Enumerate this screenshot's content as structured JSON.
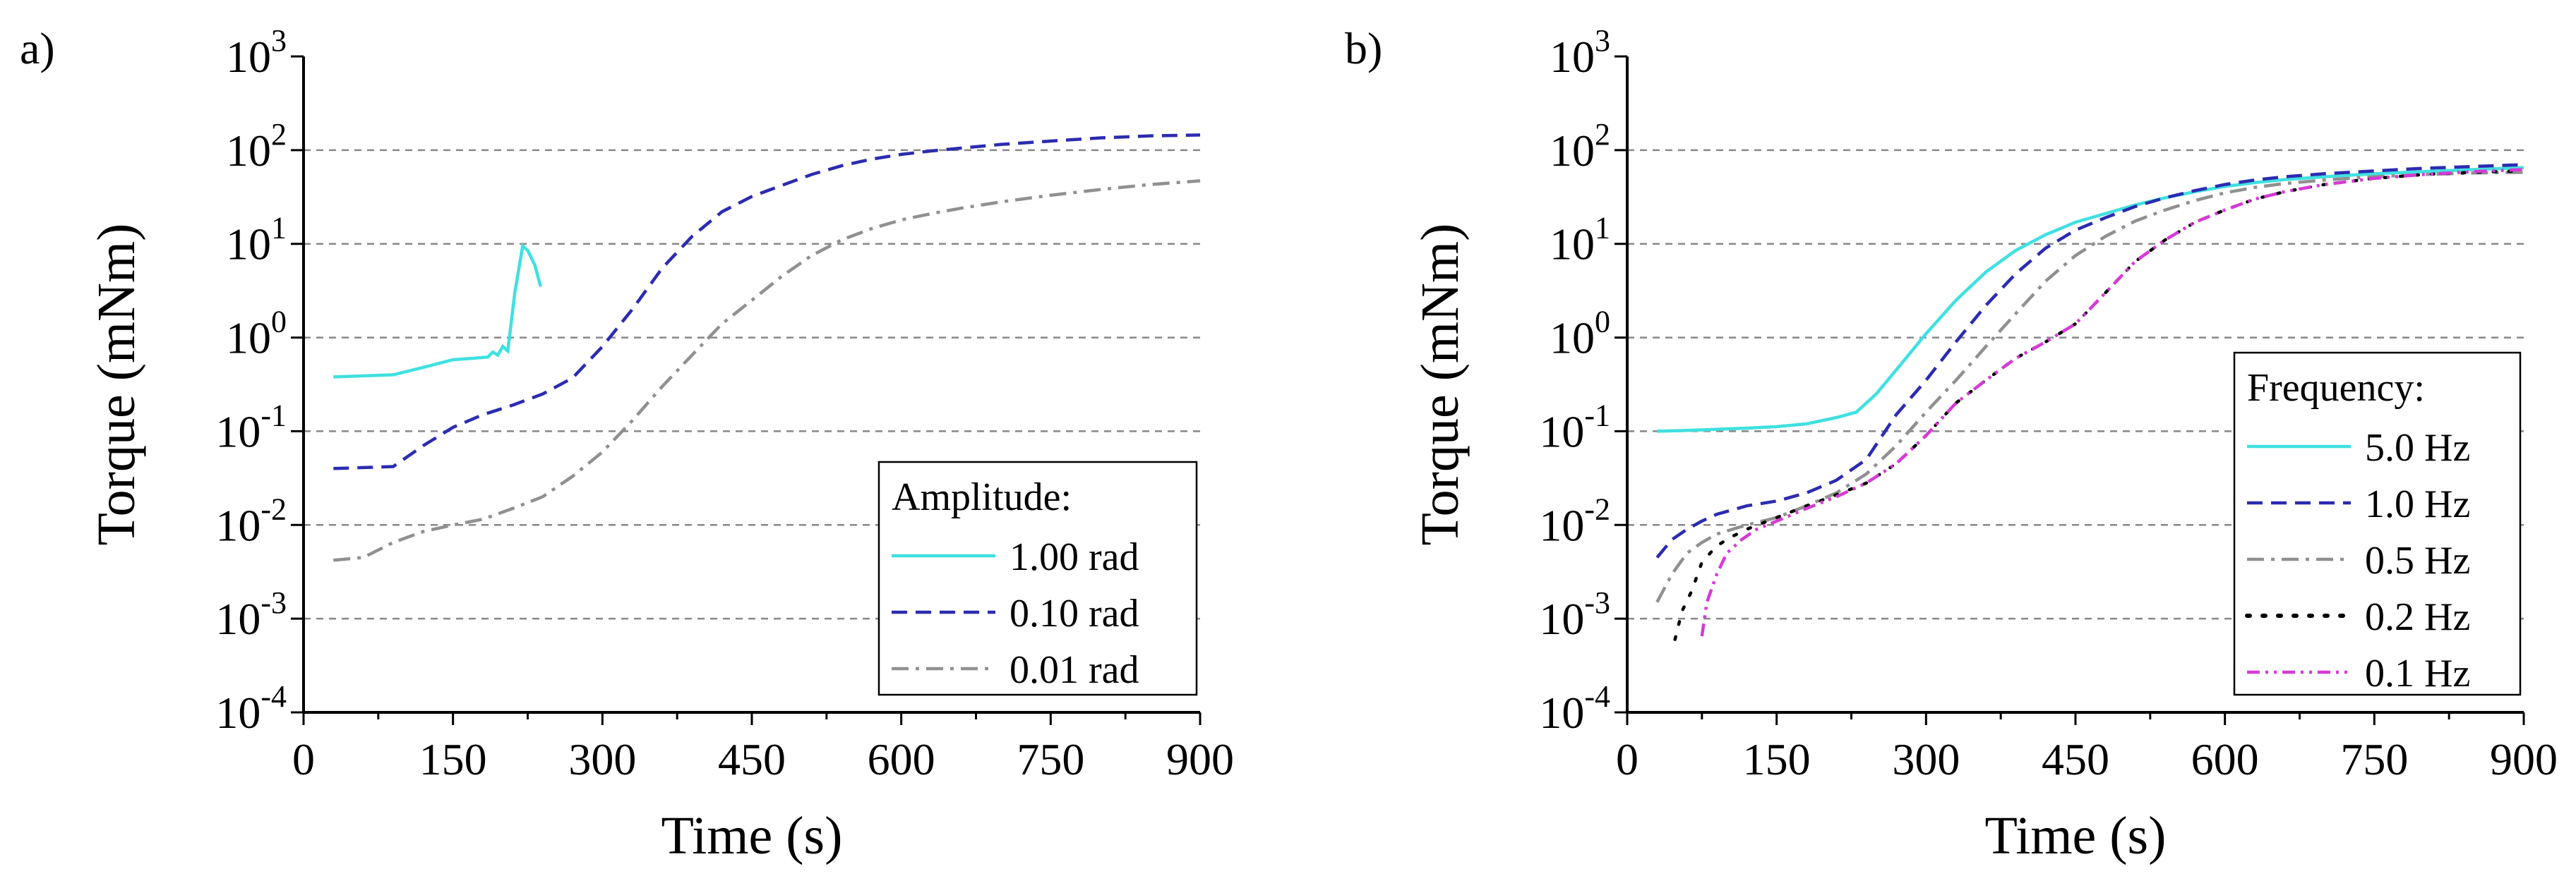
{
  "chart_data": [
    {
      "type": "line",
      "panel_label": "a)",
      "xlabel": "Time (s)",
      "ylabel": "Torque (mNm)",
      "xlim": [
        0,
        900
      ],
      "ylim": [
        0.0001,
        1000
      ],
      "yscale": "log",
      "xticks": [
        "0",
        "150",
        "300",
        "450",
        "600",
        "750",
        "900"
      ],
      "yticks": [
        {
          "base": "10",
          "exp": "-4"
        },
        {
          "base": "10",
          "exp": "-3"
        },
        {
          "base": "10",
          "exp": "-2"
        },
        {
          "base": "10",
          "exp": "-1"
        },
        {
          "base": "10",
          "exp": "0"
        },
        {
          "base": "10",
          "exp": "1"
        },
        {
          "base": "10",
          "exp": "2"
        },
        {
          "base": "10",
          "exp": "3"
        }
      ],
      "grid": "horizontal dashed at decades 10^-3 to 10^2",
      "legend_title": "Amplitude:",
      "legend_position": "lower-right",
      "series": [
        {
          "name": "1.00 rad",
          "color": "#40e0e0",
          "dash": "solid",
          "points": [
            [
              30,
              0.38
            ],
            [
              60,
              0.39
            ],
            [
              90,
              0.4
            ],
            [
              120,
              0.48
            ],
            [
              150,
              0.58
            ],
            [
              170,
              0.6
            ],
            [
              185,
              0.62
            ],
            [
              190,
              0.7
            ],
            [
              195,
              0.65
            ],
            [
              200,
              0.8
            ],
            [
              205,
              0.72
            ],
            [
              212,
              3.0
            ],
            [
              220,
              9.5
            ],
            [
              225,
              8.5
            ],
            [
              232,
              6.0
            ],
            [
              238,
              3.5
            ]
          ]
        },
        {
          "name": "0.10 rad",
          "color": "#2b2bb0",
          "dash": "dash",
          "points": [
            [
              30,
              0.04
            ],
            [
              60,
              0.041
            ],
            [
              90,
              0.042
            ],
            [
              120,
              0.07
            ],
            [
              150,
              0.11
            ],
            [
              180,
              0.15
            ],
            [
              210,
              0.19
            ],
            [
              240,
              0.25
            ],
            [
              270,
              0.37
            ],
            [
              300,
              0.8
            ],
            [
              330,
              2.0
            ],
            [
              360,
              5.5
            ],
            [
              390,
              12
            ],
            [
              420,
              22
            ],
            [
              450,
              32
            ],
            [
              480,
              42
            ],
            [
              510,
              55
            ],
            [
              540,
              68
            ],
            [
              570,
              80
            ],
            [
              600,
              90
            ],
            [
              630,
              98
            ],
            [
              660,
              105
            ],
            [
              700,
              115
            ],
            [
              750,
              125
            ],
            [
              800,
              135
            ],
            [
              850,
              142
            ],
            [
              900,
              145
            ]
          ]
        },
        {
          "name": "0.01 rad",
          "color": "#909090",
          "dash": "dashdot",
          "points": [
            [
              30,
              0.0042
            ],
            [
              60,
              0.0045
            ],
            [
              90,
              0.0065
            ],
            [
              120,
              0.0085
            ],
            [
              150,
              0.01
            ],
            [
              180,
              0.0115
            ],
            [
              210,
              0.015
            ],
            [
              240,
              0.02
            ],
            [
              270,
              0.033
            ],
            [
              300,
              0.06
            ],
            [
              330,
              0.13
            ],
            [
              360,
              0.3
            ],
            [
              390,
              0.65
            ],
            [
              420,
              1.4
            ],
            [
              450,
              2.5
            ],
            [
              480,
              4.5
            ],
            [
              510,
              7.5
            ],
            [
              540,
              11
            ],
            [
              570,
              14.5
            ],
            [
              600,
              18
            ],
            [
              630,
              21
            ],
            [
              660,
              24
            ],
            [
              700,
              28
            ],
            [
              750,
              33
            ],
            [
              800,
              38
            ],
            [
              850,
              43
            ],
            [
              900,
              47
            ]
          ]
        }
      ]
    },
    {
      "type": "line",
      "panel_label": "b)",
      "xlabel": "Time (s)",
      "ylabel": "Torque (mNm)",
      "xlim": [
        0,
        900
      ],
      "ylim": [
        0.0001,
        1000
      ],
      "yscale": "log",
      "xticks": [
        "0",
        "150",
        "300",
        "450",
        "600",
        "750",
        "900"
      ],
      "yticks": [
        {
          "base": "10",
          "exp": "-4"
        },
        {
          "base": "10",
          "exp": "-3"
        },
        {
          "base": "10",
          "exp": "-2"
        },
        {
          "base": "10",
          "exp": "-1"
        },
        {
          "base": "10",
          "exp": "0"
        },
        {
          "base": "10",
          "exp": "1"
        },
        {
          "base": "10",
          "exp": "2"
        },
        {
          "base": "10",
          "exp": "3"
        }
      ],
      "grid": "horizontal dashed at decades 10^-3 to 10^2",
      "legend_title": "Frequency:",
      "legend_position": "lower-right",
      "series": [
        {
          "name": "5.0 Hz",
          "color": "#40e0e0",
          "dash": "solid",
          "points": [
            [
              30,
              0.1
            ],
            [
              60,
              0.102
            ],
            [
              90,
              0.105
            ],
            [
              120,
              0.108
            ],
            [
              150,
              0.112
            ],
            [
              180,
              0.12
            ],
            [
              210,
              0.14
            ],
            [
              230,
              0.16
            ],
            [
              250,
              0.25
            ],
            [
              270,
              0.45
            ],
            [
              300,
              1.1
            ],
            [
              330,
              2.5
            ],
            [
              360,
              5.0
            ],
            [
              390,
              8.5
            ],
            [
              420,
              12.5
            ],
            [
              450,
              17
            ],
            [
              480,
              21
            ],
            [
              510,
              26
            ],
            [
              540,
              31
            ],
            [
              570,
              36
            ],
            [
              600,
              41
            ],
            [
              630,
              45
            ],
            [
              660,
              48.5
            ],
            [
              700,
              52
            ],
            [
              750,
              56
            ],
            [
              800,
              59
            ],
            [
              850,
              62
            ],
            [
              900,
              65
            ]
          ]
        },
        {
          "name": "1.0 Hz",
          "color": "#2b2bb0",
          "dash": "dash",
          "points": [
            [
              30,
              0.0045
            ],
            [
              45,
              0.007
            ],
            [
              60,
              0.009
            ],
            [
              75,
              0.011
            ],
            [
              90,
              0.013
            ],
            [
              120,
              0.016
            ],
            [
              150,
              0.018
            ],
            [
              180,
              0.022
            ],
            [
              210,
              0.03
            ],
            [
              240,
              0.05
            ],
            [
              270,
              0.15
            ],
            [
              300,
              0.35
            ],
            [
              330,
              0.9
            ],
            [
              360,
              2.2
            ],
            [
              390,
              4.8
            ],
            [
              420,
              9.0
            ],
            [
              450,
              14
            ],
            [
              480,
              19
            ],
            [
              510,
              25
            ],
            [
              540,
              31
            ],
            [
              570,
              37
            ],
            [
              600,
              43
            ],
            [
              630,
              48
            ],
            [
              660,
              52
            ],
            [
              700,
              56
            ],
            [
              750,
              60
            ],
            [
              800,
              64
            ],
            [
              850,
              67
            ],
            [
              900,
              70
            ]
          ]
        },
        {
          "name": "0.5 Hz",
          "color": "#909090",
          "dash": "dashdot",
          "points": [
            [
              30,
              0.0015
            ],
            [
              45,
              0.003
            ],
            [
              60,
              0.005
            ],
            [
              75,
              0.0065
            ],
            [
              90,
              0.008
            ],
            [
              120,
              0.01
            ],
            [
              150,
              0.012
            ],
            [
              180,
              0.016
            ],
            [
              210,
              0.022
            ],
            [
              240,
              0.035
            ],
            [
              270,
              0.07
            ],
            [
              300,
              0.16
            ],
            [
              330,
              0.35
            ],
            [
              360,
              0.8
            ],
            [
              390,
              1.8
            ],
            [
              420,
              4.0
            ],
            [
              450,
              7.5
            ],
            [
              480,
              12
            ],
            [
              510,
              17.5
            ],
            [
              540,
              23
            ],
            [
              570,
              29
            ],
            [
              600,
              35
            ],
            [
              630,
              40
            ],
            [
              660,
              44
            ],
            [
              700,
              48
            ],
            [
              750,
              52
            ],
            [
              800,
              55
            ],
            [
              850,
              57
            ],
            [
              900,
              58
            ]
          ]
        },
        {
          "name": "0.2 Hz",
          "color": "#000000",
          "dash": "dot",
          "points": [
            [
              48,
              0.0006
            ],
            [
              55,
              0.0012
            ],
            [
              65,
              0.002
            ],
            [
              75,
              0.004
            ],
            [
              90,
              0.006
            ],
            [
              105,
              0.0075
            ],
            [
              120,
              0.009
            ],
            [
              150,
              0.012
            ],
            [
              180,
              0.016
            ],
            [
              210,
              0.021
            ],
            [
              240,
              0.028
            ],
            [
              270,
              0.045
            ],
            [
              300,
              0.09
            ],
            [
              330,
              0.2
            ],
            [
              360,
              0.35
            ],
            [
              390,
              0.6
            ],
            [
              420,
              0.9
            ],
            [
              450,
              1.4
            ],
            [
              480,
              3.0
            ],
            [
              510,
              6.5
            ],
            [
              540,
              11
            ],
            [
              570,
              17
            ],
            [
              600,
              23
            ],
            [
              630,
              30
            ],
            [
              660,
              36
            ],
            [
              700,
              43
            ],
            [
              750,
              50
            ],
            [
              800,
              55
            ],
            [
              850,
              58
            ],
            [
              900,
              60
            ]
          ]
        },
        {
          "name": "0.1 Hz",
          "color": "#d63ad6",
          "dash": "dashdotdot",
          "points": [
            [
              75,
              0.00065
            ],
            [
              80,
              0.0015
            ],
            [
              90,
              0.003
            ],
            [
              100,
              0.005
            ],
            [
              115,
              0.007
            ],
            [
              130,
              0.009
            ],
            [
              150,
              0.011
            ],
            [
              180,
              0.015
            ],
            [
              210,
              0.02
            ],
            [
              240,
              0.028
            ],
            [
              270,
              0.045
            ],
            [
              300,
              0.09
            ],
            [
              330,
              0.2
            ],
            [
              360,
              0.35
            ],
            [
              390,
              0.6
            ],
            [
              420,
              0.9
            ],
            [
              450,
              1.4
            ],
            [
              480,
              3.0
            ],
            [
              510,
              6.5
            ],
            [
              540,
              11
            ],
            [
              570,
              17
            ],
            [
              600,
              23
            ],
            [
              630,
              30
            ],
            [
              660,
              36
            ],
            [
              700,
              43
            ],
            [
              750,
              50
            ],
            [
              800,
              55
            ],
            [
              850,
              59
            ],
            [
              900,
              62
            ]
          ]
        }
      ]
    }
  ]
}
